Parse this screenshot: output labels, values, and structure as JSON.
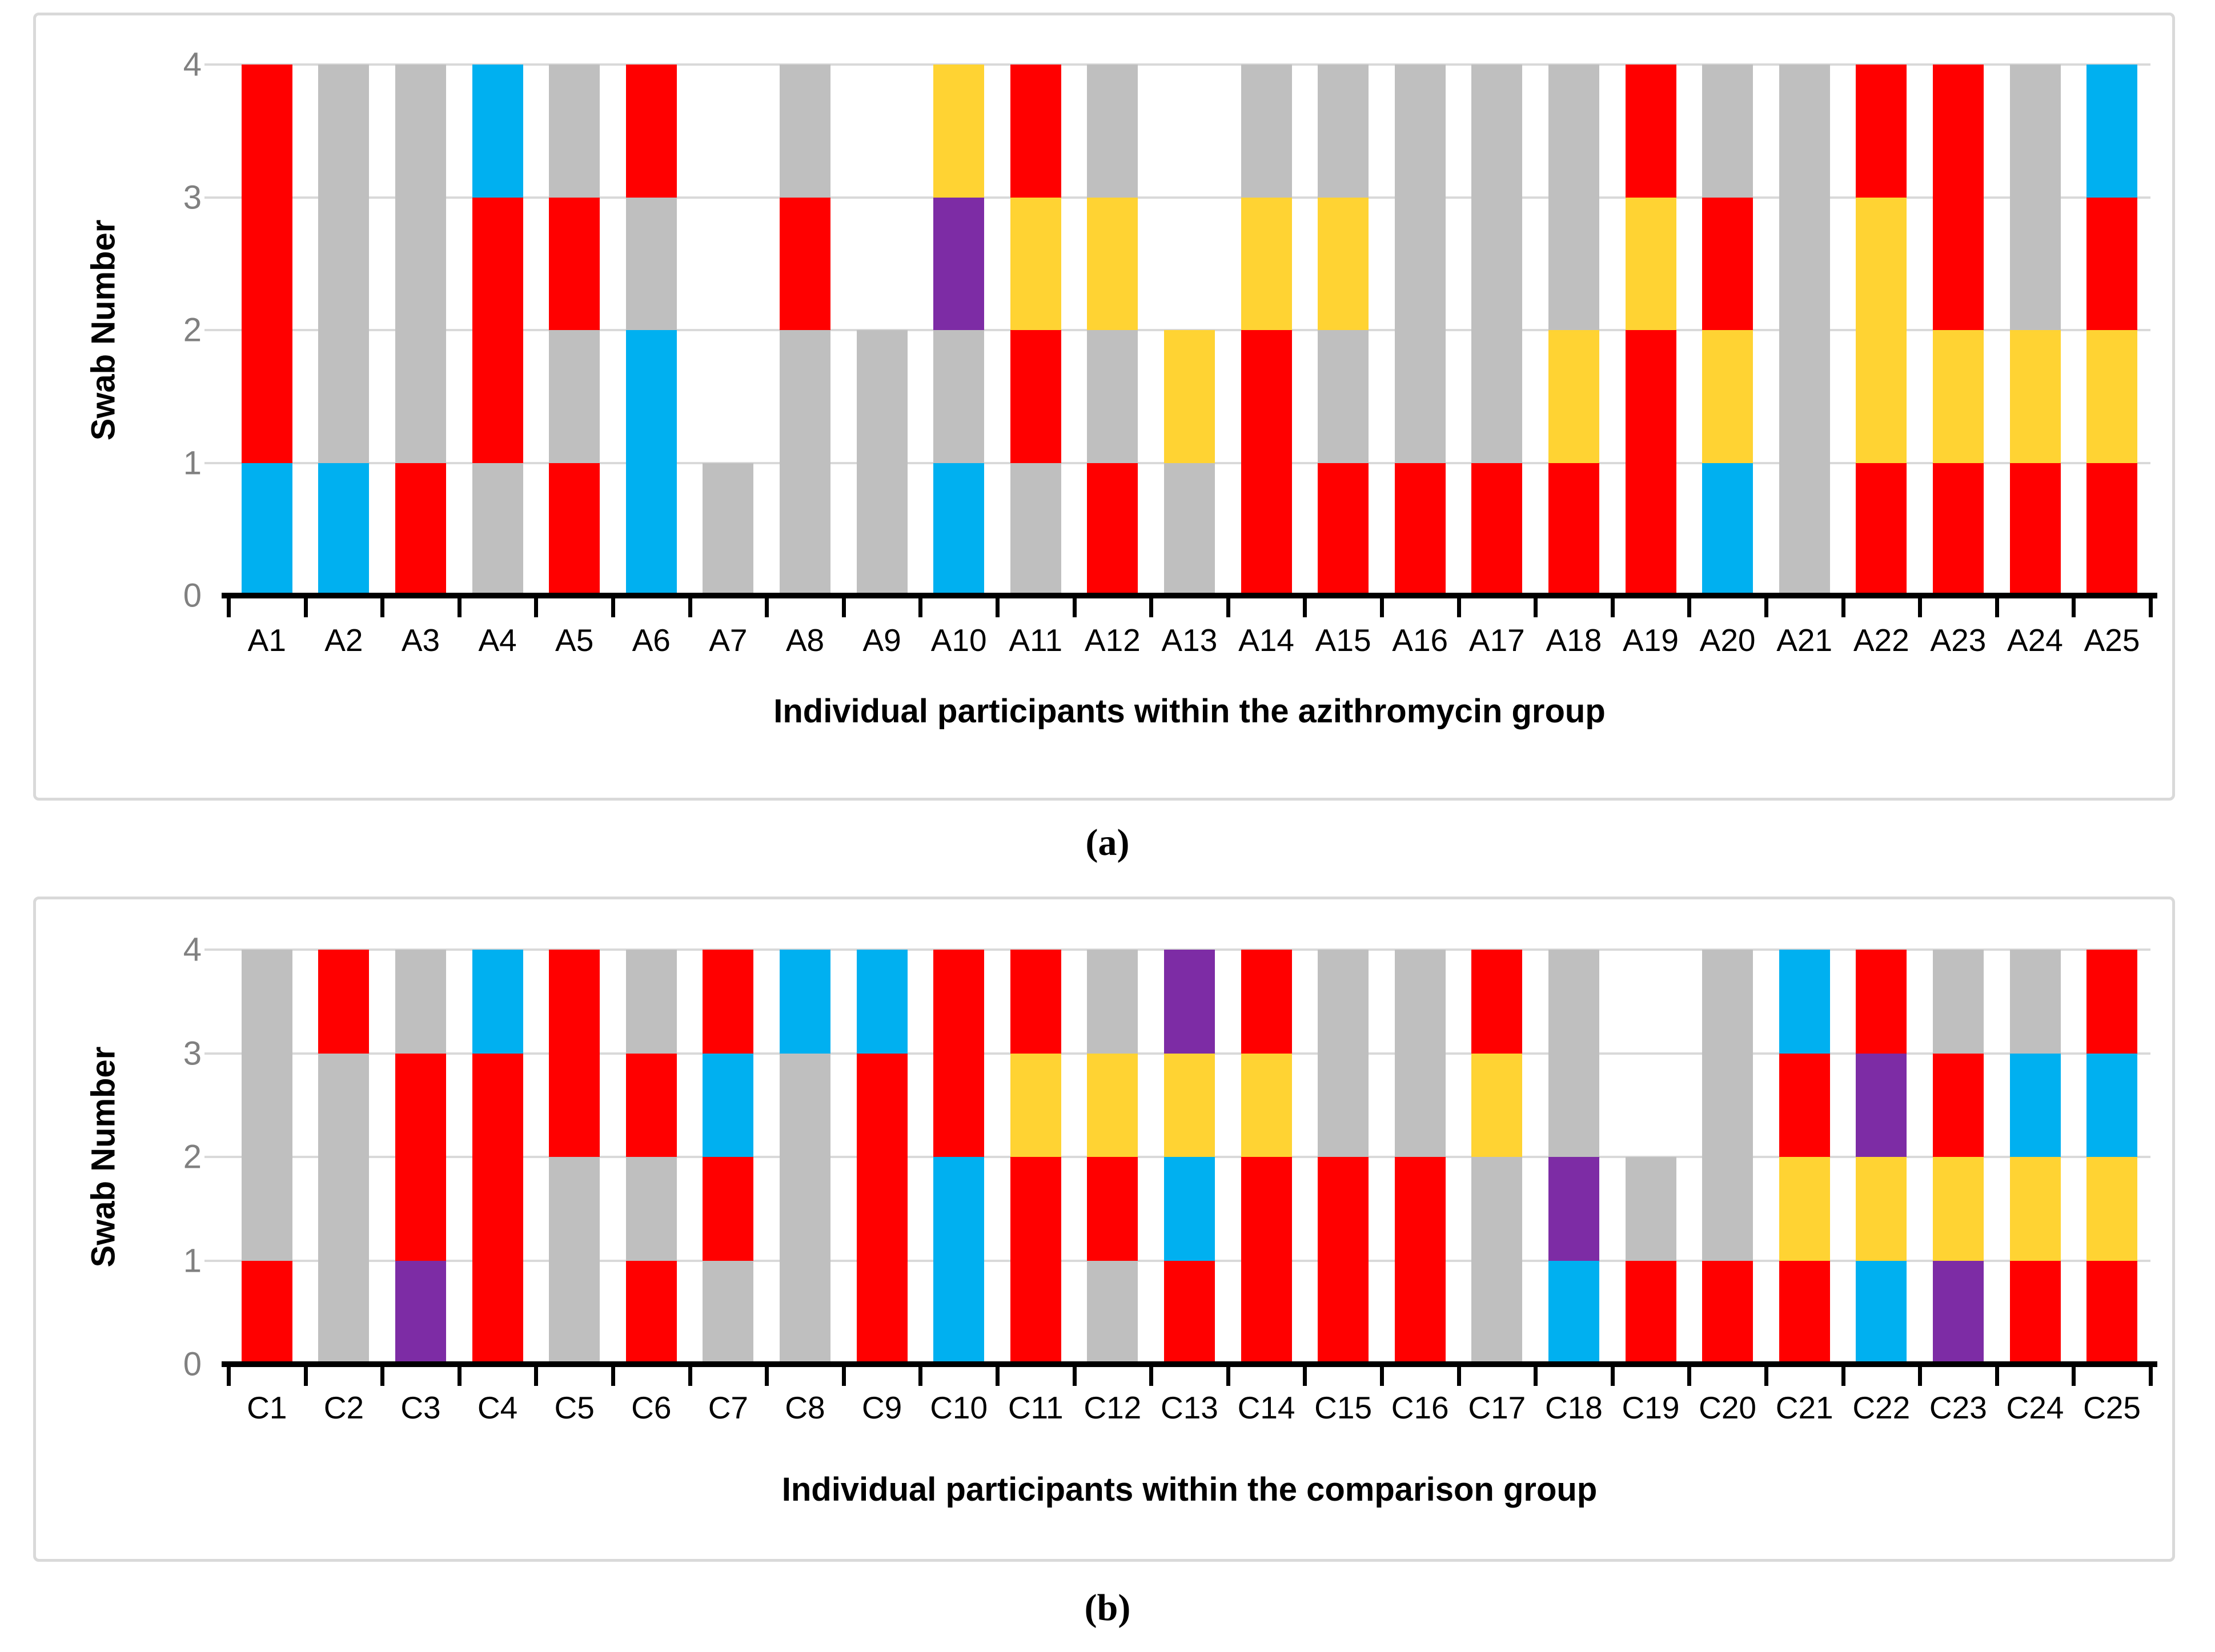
{
  "colors": {
    "red": "#FF0000",
    "blue": "#00B0F0",
    "gray": "#BFBFBF",
    "yellow": "#FFD333",
    "purple": "#7D2CA5",
    "none": "transparent",
    "grid": "#D9D9D9",
    "axis": "#000000",
    "y_tick_label": "#808080",
    "panel_border": "#D9D9D9"
  },
  "panel_labels": {
    "a": "(a)",
    "b": "(b)"
  },
  "chart_data": [
    {
      "type": "bar",
      "stacked": true,
      "title": "",
      "xlabel": "Individual participants within the azithromycin group",
      "ylabel": "Swab Number",
      "ylim": [
        0,
        4
      ],
      "yticks": [
        0,
        1,
        2,
        3,
        4
      ],
      "grid": true,
      "legend": "none",
      "segment_value": 1,
      "categories": [
        "A1",
        "A2",
        "A3",
        "A4",
        "A5",
        "A6",
        "A7",
        "A8",
        "A9",
        "A10",
        "A11",
        "A12",
        "A13",
        "A14",
        "A15",
        "A16",
        "A17",
        "A18",
        "A19",
        "A20",
        "A21",
        "A22",
        "A23",
        "A24",
        "A25"
      ],
      "bars_bottom_to_top": [
        [
          "blue",
          "red",
          "red",
          "red"
        ],
        [
          "blue",
          "gray",
          "gray",
          "gray"
        ],
        [
          "red",
          "gray",
          "gray",
          "gray"
        ],
        [
          "gray",
          "red",
          "red",
          "blue"
        ],
        [
          "red",
          "gray",
          "red",
          "gray"
        ],
        [
          "blue",
          "blue",
          "gray",
          "red"
        ],
        [
          "gray",
          "none",
          "none",
          "none"
        ],
        [
          "gray",
          "gray",
          "red",
          "gray"
        ],
        [
          "gray",
          "gray",
          "none",
          "none"
        ],
        [
          "blue",
          "gray",
          "purple",
          "yellow"
        ],
        [
          "gray",
          "red",
          "yellow",
          "red"
        ],
        [
          "red",
          "gray",
          "yellow",
          "gray"
        ],
        [
          "gray",
          "yellow",
          "none",
          "none"
        ],
        [
          "red",
          "red",
          "yellow",
          "gray"
        ],
        [
          "red",
          "gray",
          "yellow",
          "gray"
        ],
        [
          "red",
          "gray",
          "gray",
          "gray"
        ],
        [
          "red",
          "gray",
          "gray",
          "gray"
        ],
        [
          "red",
          "yellow",
          "gray",
          "gray"
        ],
        [
          "red",
          "red",
          "yellow",
          "red"
        ],
        [
          "blue",
          "yellow",
          "red",
          "gray"
        ],
        [
          "gray",
          "gray",
          "gray",
          "gray"
        ],
        [
          "red",
          "yellow",
          "yellow",
          "red"
        ],
        [
          "red",
          "yellow",
          "red",
          "red"
        ],
        [
          "red",
          "yellow",
          "gray",
          "gray"
        ],
        [
          "red",
          "yellow",
          "red",
          "blue"
        ]
      ]
    },
    {
      "type": "bar",
      "stacked": true,
      "title": "",
      "xlabel": "Individual participants within the comparison group",
      "ylabel": "Swab Number",
      "ylim": [
        0,
        4
      ],
      "yticks": [
        0,
        1,
        2,
        3,
        4
      ],
      "grid": true,
      "legend": "none",
      "segment_value": 1,
      "categories": [
        "C1",
        "C2",
        "C3",
        "C4",
        "C5",
        "C6",
        "C7",
        "C8",
        "C9",
        "C10",
        "C11",
        "C12",
        "C13",
        "C14",
        "C15",
        "C16",
        "C17",
        "C18",
        "C19",
        "C20",
        "C21",
        "C22",
        "C23",
        "C24",
        "C25"
      ],
      "bars_bottom_to_top": [
        [
          "red",
          "gray",
          "gray",
          "gray"
        ],
        [
          "gray",
          "gray",
          "gray",
          "red"
        ],
        [
          "purple",
          "red",
          "red",
          "gray"
        ],
        [
          "red",
          "red",
          "red",
          "blue"
        ],
        [
          "gray",
          "gray",
          "red",
          "red"
        ],
        [
          "red",
          "gray",
          "red",
          "gray"
        ],
        [
          "gray",
          "red",
          "blue",
          "red"
        ],
        [
          "gray",
          "gray",
          "gray",
          "blue"
        ],
        [
          "red",
          "red",
          "red",
          "blue"
        ],
        [
          "blue",
          "blue",
          "red",
          "red"
        ],
        [
          "red",
          "red",
          "yellow",
          "red"
        ],
        [
          "gray",
          "red",
          "yellow",
          "gray"
        ],
        [
          "red",
          "blue",
          "yellow",
          "purple"
        ],
        [
          "red",
          "red",
          "yellow",
          "red"
        ],
        [
          "red",
          "red",
          "gray",
          "gray"
        ],
        [
          "red",
          "red",
          "gray",
          "gray"
        ],
        [
          "gray",
          "gray",
          "yellow",
          "red"
        ],
        [
          "blue",
          "purple",
          "gray",
          "gray"
        ],
        [
          "red",
          "gray",
          "none",
          "none"
        ],
        [
          "red",
          "gray",
          "gray",
          "gray"
        ],
        [
          "red",
          "yellow",
          "red",
          "blue"
        ],
        [
          "blue",
          "yellow",
          "purple",
          "red"
        ],
        [
          "purple",
          "yellow",
          "red",
          "gray"
        ],
        [
          "red",
          "yellow",
          "blue",
          "gray"
        ],
        [
          "red",
          "yellow",
          "blue",
          "red"
        ]
      ]
    }
  ]
}
